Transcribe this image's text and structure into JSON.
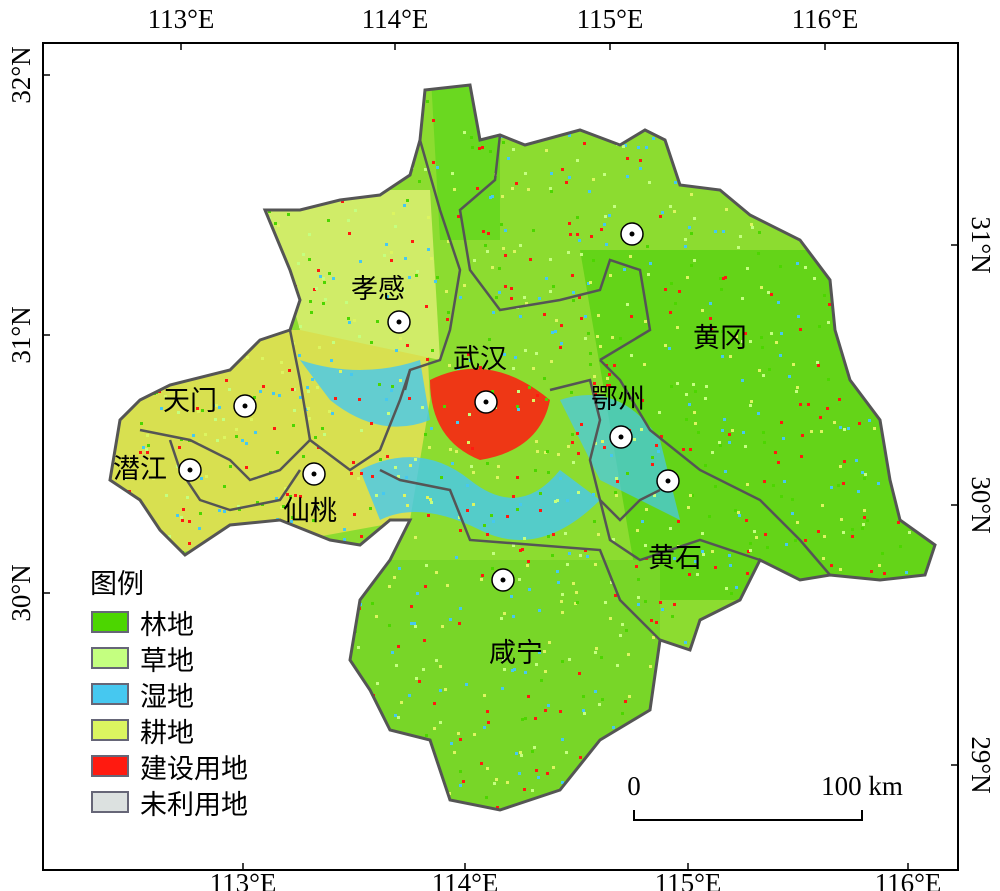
{
  "axes": {
    "top_ticks": [
      "113°E",
      "114°E",
      "115°E",
      "116°E"
    ],
    "bottom_ticks": [
      "113°E",
      "114°E",
      "115°E",
      "116°E"
    ],
    "left_ticks": [
      "32°N",
      "31°N",
      "30°N"
    ],
    "right_ticks": [
      "31°N",
      "30°N",
      "29°N"
    ]
  },
  "cities": [
    "孝感",
    "武汉",
    "天门",
    "潜江",
    "仙桃",
    "鄂州",
    "黄冈",
    "黄石",
    "咸宁"
  ],
  "legend": {
    "title": "图例",
    "items": [
      {
        "label": "林地",
        "color": "#4cd600"
      },
      {
        "label": "草地",
        "color": "#c4ff80"
      },
      {
        "label": "湿地",
        "color": "#46c8f0"
      },
      {
        "label": "耕地",
        "color": "#dcf560"
      },
      {
        "label": "建设用地",
        "color": "#ff1a10"
      },
      {
        "label": "未利用地",
        "color": "#dce1e0"
      }
    ]
  },
  "scale_bar": {
    "start": "0",
    "end": "100 km"
  }
}
